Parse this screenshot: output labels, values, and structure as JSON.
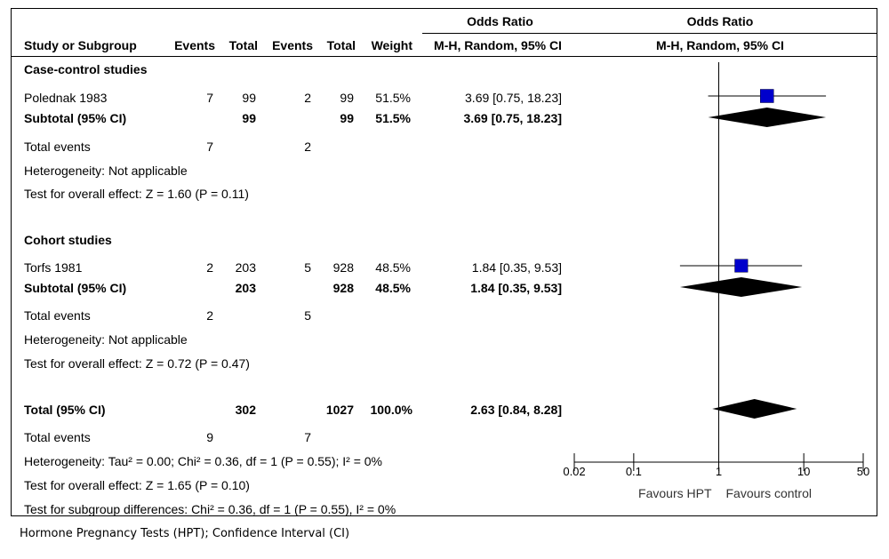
{
  "header": {
    "or_group_left": "Odds Ratio",
    "or_group_right": "Odds Ratio",
    "col_study": "Study or Subgroup",
    "col_events1": "Events",
    "col_total1": "Total",
    "col_events2": "Events",
    "col_total2": "Total",
    "col_weight": "Weight",
    "col_method_left": "M-H, Random, 95% CI",
    "col_method_right": "M-H, Random, 95% CI"
  },
  "groups": [
    {
      "title": "Case-control studies",
      "study": {
        "name": "Polednak 1983",
        "events1": "7",
        "total1": "99",
        "events2": "2",
        "total2": "99",
        "weight": "51.5%",
        "ci": "3.69 [0.75, 18.23]"
      },
      "subtotal": {
        "label": "Subtotal (95% CI)",
        "total1": "99",
        "total2": "99",
        "weight": "51.5%",
        "ci": "3.69 [0.75, 18.23]"
      },
      "total_events": {
        "label": "Total events",
        "events1": "7",
        "events2": "2"
      },
      "heterogeneity": "Heterogeneity: Not applicable",
      "overall_effect": "Test for overall effect: Z = 1.60 (P = 0.11)"
    },
    {
      "title": "Cohort studies",
      "study": {
        "name": "Torfs 1981",
        "events1": "2",
        "total1": "203",
        "events2": "5",
        "total2": "928",
        "weight": "48.5%",
        "ci": "1.84 [0.35, 9.53]"
      },
      "subtotal": {
        "label": "Subtotal (95% CI)",
        "total1": "203",
        "total2": "928",
        "weight": "48.5%",
        "ci": "1.84 [0.35, 9.53]"
      },
      "total_events": {
        "label": "Total events",
        "events1": "2",
        "events2": "5"
      },
      "heterogeneity": "Heterogeneity: Not applicable",
      "overall_effect": "Test for overall effect: Z = 0.72 (P = 0.47)"
    }
  ],
  "overall": {
    "label": "Total (95% CI)",
    "total1": "302",
    "total2": "1027",
    "weight": "100.0%",
    "ci": "2.63 [0.84, 8.28]",
    "total_events": {
      "label": "Total events",
      "events1": "9",
      "events2": "7"
    },
    "heterogeneity": "Heterogeneity: Tau² = 0.00; Chi² = 0.36, df = 1 (P = 0.55); I² = 0%",
    "overall_effect": "Test for overall effect: Z = 1.65 (P = 0.10)",
    "subgroup_diff": "Test for subgroup differences: Chi² = 0.36, df = 1 (P = 0.55), I² = 0%"
  },
  "footnote": "Hormone Pregnancy Tests (HPT); Confidence Interval (CI)",
  "chart_data": {
    "type": "forest",
    "scale": "log",
    "xlim": [
      0.02,
      50
    ],
    "ticks": [
      0.02,
      0.1,
      1,
      10,
      50
    ],
    "tick_labels": [
      "0.02",
      "0.1",
      "1",
      "10",
      "50"
    ],
    "null_line": 1,
    "favours_left": "Favours HPT",
    "favours_right": "Favours control",
    "marker_color": "#0000cc",
    "diamond_color": "#000000",
    "studies": [
      {
        "name": "Polednak 1983",
        "or": 3.69,
        "lower": 0.75,
        "upper": 18.23,
        "weight": 51.5
      },
      {
        "name": "Torfs 1981",
        "or": 1.84,
        "lower": 0.35,
        "upper": 9.53,
        "weight": 48.5
      }
    ],
    "subtotals": [
      {
        "name": "Subtotal (95% CI)",
        "or": 3.69,
        "lower": 0.75,
        "upper": 18.23
      },
      {
        "name": "Subtotal (95% CI)",
        "or": 1.84,
        "lower": 0.35,
        "upper": 9.53
      }
    ],
    "overall": {
      "name": "Total (95% CI)",
      "or": 2.63,
      "lower": 0.84,
      "upper": 8.28
    }
  }
}
